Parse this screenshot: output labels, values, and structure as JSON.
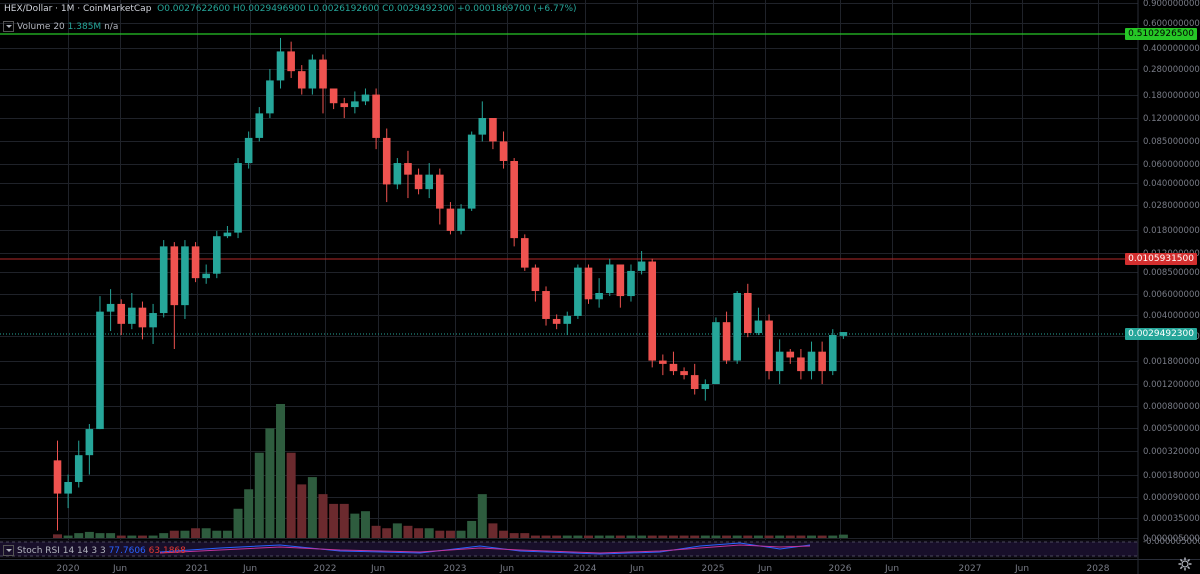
{
  "header": {
    "symbol": "HEX/Dollar · 1M · CoinMarketCap",
    "ohlc": "O0.0027622600 H0.0029496900 L0.0026192600 C0.0029492300 +0.0001869700 (+6.77%)"
  },
  "volume_legend": {
    "label": "Volume 20",
    "value": "1.385M",
    "extra": "n/a"
  },
  "stoch_legend": {
    "label": "Stoch RSI 14 14 3 3",
    "k": "77.7606",
    "d": "63.1868"
  },
  "colors": {
    "up": "#26a69a",
    "down": "#ef5350",
    "upVol": "#2e5c3e",
    "downVol": "#6b2a2e",
    "green_line": "#26c726",
    "red_line": "#b22a2a",
    "last": "#26a69a"
  },
  "price_tags": {
    "green": "0.5102926500",
    "red": "0.0105931500",
    "last": "0.0029492300"
  },
  "settings_icon": "gear-icon",
  "chart_data": {
    "type": "candlestick",
    "title": "HEX/Dollar · 1M · CoinMarketCap",
    "interval": "1M",
    "y_scale": "log",
    "y_tick_labels": [
      "0.9000000000",
      "0.6000000000",
      "0.4000000000",
      "0.2800000000",
      "0.1800000000",
      "0.1200000000",
      "0.0850000000",
      "0.0600000000",
      "0.0400000000",
      "0.0280000000",
      "0.0180000000",
      "0.0120000000",
      "0.0085000000",
      "0.0060000000",
      "0.0040000000",
      "0.0028000000",
      "0.0018000000",
      "0.0012000000",
      "0.0008000000",
      "0.0005000000",
      "0.0003200000",
      "0.0001800000",
      "0.0000900000",
      "0.0000350000",
      "0.0000050000",
      "-0.0000050000"
    ],
    "x_tick_labels": [
      "2020",
      "Jun",
      "2021",
      "Jun",
      "2022",
      "Jun",
      "2023",
      "Jun",
      "2024",
      "Jun",
      "2025",
      "Jun",
      "2026",
      "Jun",
      "2027",
      "Jun",
      "2028"
    ],
    "horizontal_lines": [
      {
        "label": "0.5102926500",
        "color": "green"
      },
      {
        "label": "0.0105931500",
        "color": "red"
      }
    ],
    "last_price": "0.0029492300",
    "candles": [
      [
        0.00032,
        0.00018,
        0.00045,
        9.5e-05
      ],
      [
        0.00018,
        0.00022,
        0.00025,
        0.00014
      ],
      [
        0.00022,
        0.00035,
        0.00045,
        0.0002
      ],
      [
        0.00035,
        0.00055,
        0.0006,
        0.00025
      ],
      [
        0.00055,
        0.0042,
        0.0055,
        0.00055
      ],
      [
        0.0042,
        0.0048,
        0.0062,
        0.003
      ],
      [
        0.0048,
        0.0034,
        0.0052,
        0.0028
      ],
      [
        0.0034,
        0.0045,
        0.0058,
        0.0031
      ],
      [
        0.0045,
        0.0032,
        0.005,
        0.0026
      ],
      [
        0.0032,
        0.0041,
        0.0048,
        0.0024
      ],
      [
        0.0041,
        0.013,
        0.0145,
        0.0038
      ],
      [
        0.013,
        0.0047,
        0.014,
        0.0022
      ],
      [
        0.0047,
        0.013,
        0.0145,
        0.0037
      ],
      [
        0.013,
        0.0075,
        0.014,
        0.007
      ],
      [
        0.0075,
        0.0081,
        0.0095,
        0.0068
      ],
      [
        0.0081,
        0.0155,
        0.017,
        0.0075
      ],
      [
        0.0155,
        0.0165,
        0.0185,
        0.015
      ],
      [
        0.0165,
        0.055,
        0.06,
        0.015
      ],
      [
        0.055,
        0.085,
        0.095,
        0.05
      ],
      [
        0.085,
        0.13,
        0.145,
        0.08
      ],
      [
        0.13,
        0.23,
        0.28,
        0.12
      ],
      [
        0.23,
        0.38,
        0.48,
        0.2
      ],
      [
        0.38,
        0.27,
        0.45,
        0.24
      ],
      [
        0.27,
        0.2,
        0.3,
        0.18
      ],
      [
        0.2,
        0.33,
        0.36,
        0.18
      ],
      [
        0.33,
        0.2,
        0.36,
        0.13
      ],
      [
        0.2,
        0.155,
        0.2,
        0.14
      ],
      [
        0.155,
        0.145,
        0.17,
        0.12
      ],
      [
        0.145,
        0.16,
        0.19,
        0.13
      ],
      [
        0.16,
        0.18,
        0.2,
        0.15
      ],
      [
        0.18,
        0.085,
        0.2,
        0.07
      ],
      [
        0.085,
        0.038,
        0.1,
        0.028
      ],
      [
        0.038,
        0.055,
        0.06,
        0.035
      ],
      [
        0.055,
        0.045,
        0.068,
        0.03
      ],
      [
        0.045,
        0.035,
        0.05,
        0.032
      ],
      [
        0.035,
        0.045,
        0.055,
        0.03
      ],
      [
        0.045,
        0.025,
        0.05,
        0.019
      ],
      [
        0.025,
        0.017,
        0.028,
        0.016
      ],
      [
        0.017,
        0.025,
        0.027,
        0.016
      ],
      [
        0.025,
        0.09,
        0.095,
        0.024
      ],
      [
        0.09,
        0.12,
        0.16,
        0.08
      ],
      [
        0.12,
        0.08,
        0.12,
        0.07
      ],
      [
        0.08,
        0.057,
        0.095,
        0.05
      ],
      [
        0.057,
        0.015,
        0.06,
        0.013
      ],
      [
        0.015,
        0.009,
        0.016,
        0.0085
      ],
      [
        0.009,
        0.006,
        0.0095,
        0.005
      ],
      [
        0.006,
        0.0037,
        0.0065,
        0.0033
      ],
      [
        0.0037,
        0.0034,
        0.004,
        0.0031
      ],
      [
        0.0034,
        0.0039,
        0.0042,
        0.0028
      ],
      [
        0.0039,
        0.009,
        0.0095,
        0.0037
      ],
      [
        0.009,
        0.0052,
        0.0095,
        0.0048
      ],
      [
        0.0052,
        0.0058,
        0.0075,
        0.0045
      ],
      [
        0.0058,
        0.0095,
        0.0105,
        0.0055
      ],
      [
        0.0095,
        0.0055,
        0.0095,
        0.0045
      ],
      [
        0.0055,
        0.0085,
        0.0095,
        0.005
      ],
      [
        0.0085,
        0.01,
        0.012,
        0.008
      ],
      [
        0.01,
        0.0018,
        0.0105,
        0.0016
      ],
      [
        0.0018,
        0.0017,
        0.002,
        0.0014
      ],
      [
        0.0017,
        0.0015,
        0.0021,
        0.0014
      ],
      [
        0.0015,
        0.0014,
        0.0016,
        0.0013
      ],
      [
        0.0014,
        0.0011,
        0.0017,
        0.001
      ],
      [
        0.0011,
        0.0012,
        0.0013,
        0.0009
      ],
      [
        0.0012,
        0.0035,
        0.0038,
        0.0012
      ],
      [
        0.0035,
        0.0018,
        0.0042,
        0.0017
      ],
      [
        0.0018,
        0.0058,
        0.006,
        0.0017
      ],
      [
        0.0058,
        0.0029,
        0.0068,
        0.0027
      ],
      [
        0.0029,
        0.0036,
        0.0045,
        0.0028
      ],
      [
        0.0036,
        0.0015,
        0.004,
        0.0013
      ],
      [
        0.0015,
        0.0021,
        0.0026,
        0.0012
      ],
      [
        0.0021,
        0.0019,
        0.0022,
        0.0017
      ],
      [
        0.0019,
        0.0015,
        0.0022,
        0.0013
      ],
      [
        0.0015,
        0.0021,
        0.0025,
        0.0013
      ],
      [
        0.0021,
        0.0015,
        0.0025,
        0.0012
      ],
      [
        0.0015,
        0.0028,
        0.0031,
        0.0014
      ],
      [
        0.00276226,
        0.00294923,
        0.00294969,
        0.00261926
      ]
    ],
    "volumes": [
      1.5,
      1,
      2,
      2.5,
      2,
      2,
      1,
      1,
      1,
      1,
      2,
      3,
      3,
      4,
      4,
      3,
      3,
      12,
      20,
      35,
      45,
      55,
      35,
      22,
      25,
      18,
      14,
      14,
      10,
      11,
      5,
      4,
      6,
      5,
      4,
      4,
      3,
      3,
      3,
      7,
      18,
      6,
      3,
      2,
      2,
      1,
      1,
      1,
      1,
      1,
      1,
      1,
      1,
      1,
      1,
      1,
      1,
      1,
      1,
      1,
      1,
      1,
      1,
      1,
      1,
      1,
      1,
      1,
      1,
      1,
      1,
      1,
      1,
      1,
      1.385
    ]
  }
}
